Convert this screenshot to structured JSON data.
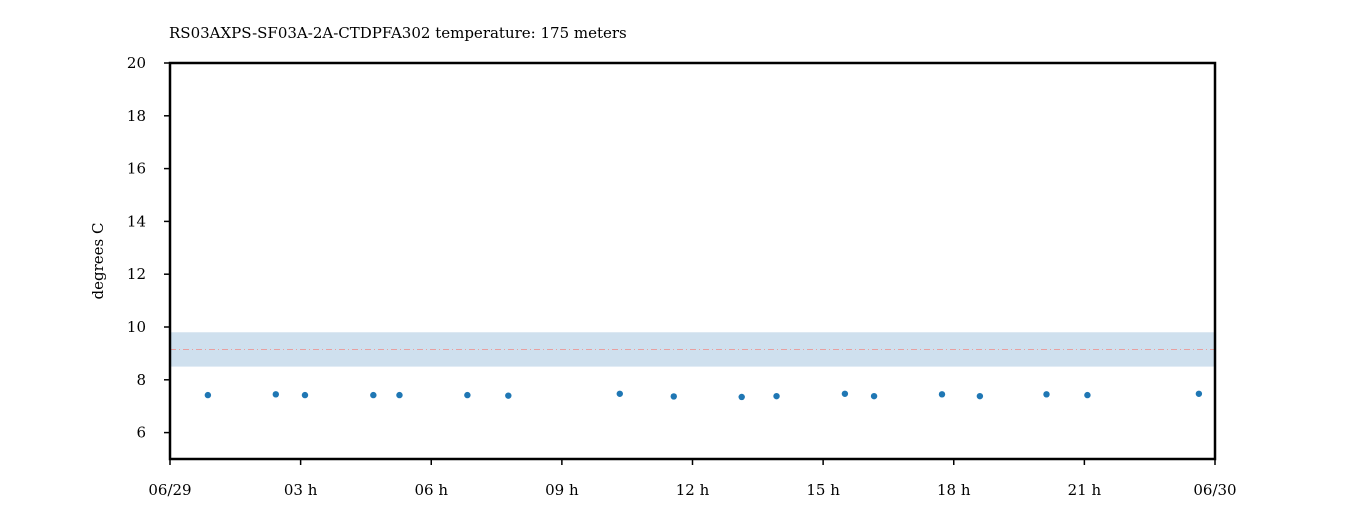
{
  "chart_data": {
    "type": "scatter",
    "title": "RS03AXPS-SF03A-2A-CTDPFA302 temperature: 175 meters",
    "xlabel": "",
    "ylabel": "degrees C",
    "xlim": [
      0,
      24
    ],
    "ylim": [
      5,
      20
    ],
    "x_unit": "hours since 06/29 00:00",
    "x_ticks": [
      {
        "value": 0,
        "label": "06/29"
      },
      {
        "value": 3,
        "label": "03 h"
      },
      {
        "value": 6,
        "label": "06 h"
      },
      {
        "value": 9,
        "label": "09 h"
      },
      {
        "value": 12,
        "label": "12 h"
      },
      {
        "value": 15,
        "label": "15 h"
      },
      {
        "value": 18,
        "label": "18 h"
      },
      {
        "value": 21,
        "label": "21 h"
      },
      {
        "value": 24,
        "label": "06/30"
      }
    ],
    "y_ticks": [
      6,
      8,
      10,
      12,
      14,
      16,
      18,
      20
    ],
    "grid": false,
    "band": {
      "lower": 8.5,
      "upper": 9.8,
      "color": "#cfe0ee"
    },
    "reference_line": {
      "value": 9.15,
      "color": "#e8a0a0"
    },
    "series": [
      {
        "color": "#1f77b4",
        "points": [
          {
            "x": 0.87,
            "y": 7.42
          },
          {
            "x": 2.43,
            "y": 7.45
          },
          {
            "x": 3.1,
            "y": 7.42
          },
          {
            "x": 4.67,
            "y": 7.42
          },
          {
            "x": 5.27,
            "y": 7.42
          },
          {
            "x": 6.83,
            "y": 7.42
          },
          {
            "x": 7.77,
            "y": 7.4
          },
          {
            "x": 10.33,
            "y": 7.47
          },
          {
            "x": 11.57,
            "y": 7.37
          },
          {
            "x": 13.13,
            "y": 7.35
          },
          {
            "x": 13.93,
            "y": 7.38
          },
          {
            "x": 15.5,
            "y": 7.47
          },
          {
            "x": 16.17,
            "y": 7.38
          },
          {
            "x": 17.73,
            "y": 7.45
          },
          {
            "x": 18.6,
            "y": 7.38
          },
          {
            "x": 20.13,
            "y": 7.45
          },
          {
            "x": 21.07,
            "y": 7.42
          },
          {
            "x": 23.63,
            "y": 7.47
          }
        ]
      }
    ]
  }
}
